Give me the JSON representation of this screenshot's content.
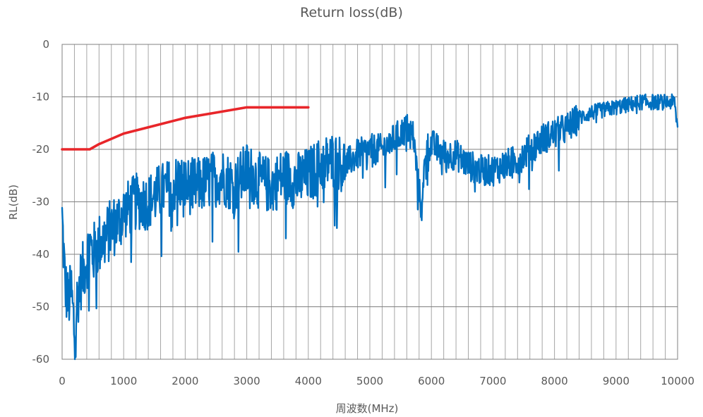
{
  "chart_data": {
    "type": "line",
    "title": "Return loss(dB)",
    "xlabel": "周波数(MHz)",
    "ylabel": "RL(dB)",
    "xlim": [
      0,
      10000
    ],
    "ylim": [
      -60,
      0
    ],
    "x_ticks": [
      "0",
      "1000",
      "2000",
      "3000",
      "4000",
      "5000",
      "6000",
      "7000",
      "8000",
      "9000",
      "10000"
    ],
    "y_ticks": [
      "0",
      "-10",
      "-20",
      "-30",
      "-40",
      "-50",
      "-60"
    ],
    "minor_x_grid_step": 200,
    "grid": true,
    "legend": "none",
    "series": [
      {
        "color": "#0070C0",
        "x": [
          0,
          50,
          100,
          150,
          200,
          250,
          300,
          350,
          400,
          450,
          500,
          600,
          700,
          800,
          900,
          1000,
          1200,
          1400,
          1600,
          1800,
          1900,
          2000,
          2200,
          2400,
          2600,
          2800,
          3000,
          3200,
          3400,
          3600,
          3800,
          4000,
          4200,
          4400,
          4600,
          4800,
          5000,
          5200,
          5400,
          5600,
          5700,
          5800,
          5850,
          5900,
          6000,
          6200,
          6400,
          6600,
          6800,
          7000,
          7200,
          7400,
          7600,
          7800,
          8000,
          8200,
          8400,
          8600,
          8800,
          9000,
          9200,
          9400,
          9600,
          9800,
          9950,
          10000
        ],
        "y": [
          -33,
          -46,
          -49,
          -47,
          -55,
          -48,
          -45,
          -43,
          -41,
          -38,
          -40,
          -38,
          -37,
          -35,
          -34,
          -32,
          -30,
          -30,
          -28,
          -27,
          -26,
          -27,
          -27,
          -26,
          -25,
          -27,
          -24,
          -26,
          -27,
          -25,
          -26,
          -25,
          -23,
          -22,
          -23,
          -21,
          -20,
          -20,
          -18,
          -16,
          -17,
          -28,
          -32,
          -20,
          -19,
          -21,
          -21,
          -23,
          -24,
          -24,
          -23,
          -22,
          -20,
          -18,
          -17,
          -16,
          -14,
          -13,
          -12.5,
          -12,
          -11.5,
          -11,
          -11,
          -11,
          -11,
          -16
        ]
      },
      {
        "color": "#E8262A",
        "x": [
          0,
          250,
          450,
          600,
          800,
          1000,
          1500,
          2000,
          2500,
          3000,
          3500,
          4000
        ],
        "y": [
          -20,
          -20,
          -20,
          -19,
          -18,
          -17,
          -15.5,
          -14,
          -13,
          -12,
          -12,
          -12
        ]
      }
    ]
  }
}
